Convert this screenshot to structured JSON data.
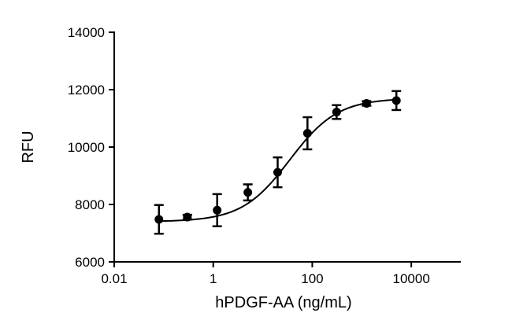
{
  "chart_data": {
    "type": "scatter",
    "title": "",
    "xlabel": "hPDGF-AA (ng/mL)",
    "ylabel": "RFU",
    "x_scale": "log",
    "xlim": [
      0.01,
      100000
    ],
    "ylim": [
      6000,
      14000
    ],
    "x_ticks": [
      0.01,
      1,
      100,
      10000
    ],
    "x_tick_labels": [
      "0.01",
      "1",
      "100",
      "10000"
    ],
    "y_ticks": [
      6000,
      8000,
      10000,
      12000,
      14000
    ],
    "y_tick_labels": [
      "6000",
      "8000",
      "10000",
      "12000",
      "14000"
    ],
    "grid": false,
    "legend": "none",
    "fit_curve": "sigmoidal dose-response",
    "series": [
      {
        "x": [
          0.08,
          0.3,
          1.2,
          5,
          20,
          80,
          310,
          1250,
          5000
        ],
        "y": [
          7480,
          7560,
          7800,
          8420,
          9120,
          10480,
          11220,
          11520,
          11620
        ],
        "error": [
          500,
          80,
          560,
          280,
          520,
          560,
          240,
          80,
          330
        ]
      }
    ],
    "colors": {
      "marks": "#000000"
    }
  }
}
